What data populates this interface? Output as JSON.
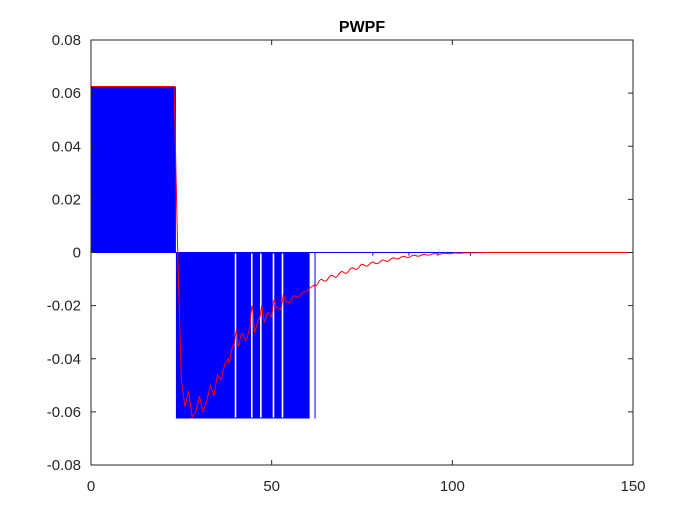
{
  "chart_data": {
    "type": "line",
    "title": "PWPF",
    "xlabel": "",
    "ylabel": "",
    "xlim": [
      0,
      150
    ],
    "ylim": [
      -0.08,
      0.08
    ],
    "x_ticks": [
      0,
      50,
      100,
      150
    ],
    "x_tick_labels": [
      "0",
      "50",
      "100",
      "150"
    ],
    "y_ticks": [
      -0.08,
      -0.06,
      -0.04,
      -0.02,
      0,
      0.02,
      0.04,
      0.06,
      0.08
    ],
    "y_tick_labels": [
      "-0.08",
      "-0.06",
      "-0.04",
      "-0.02",
      "0",
      "0.02",
      "0.04",
      "0.06",
      "0.08"
    ],
    "grid": false,
    "legend": "none",
    "series": [
      {
        "color": "#0000ff",
        "style": "pulse-width pulse-frequency modulated output",
        "pulse_amplitude": 0.0625,
        "segments": [
          {
            "x_start": 0,
            "x_end": 23.5,
            "level": 0.0625,
            "fill": "dense pulses"
          },
          {
            "x_start": 23.5,
            "x_end": 60.5,
            "level": -0.0625,
            "fill": "dense pulses"
          },
          {
            "x_start": 60.5,
            "x_end": 150,
            "level": 0,
            "fill": "sparse pulses"
          }
        ],
        "gaps_in_negative_block_x": [
          40,
          44.5,
          47,
          50.5,
          53
        ],
        "isolated_negative_pulses_x": [
          62
        ],
        "small_tail_pulses_x": [
          78,
          88,
          96,
          105
        ]
      },
      {
        "color": "#ff0000",
        "style": "control signal",
        "x": [
          0,
          23,
          24,
          25,
          26,
          27,
          28,
          29,
          30,
          31,
          32,
          33,
          34,
          35,
          36,
          37,
          38,
          40,
          42,
          44,
          46,
          48,
          50,
          52,
          54,
          56,
          58,
          60,
          62,
          65,
          70,
          75,
          80,
          85,
          90,
          95,
          100,
          105,
          110,
          150
        ],
        "y": [
          0.0625,
          0.0625,
          0.0,
          -0.048,
          -0.058,
          -0.052,
          -0.062,
          -0.06,
          -0.054,
          -0.06,
          -0.056,
          -0.05,
          -0.054,
          -0.046,
          -0.048,
          -0.042,
          -0.04,
          -0.036,
          -0.032,
          -0.03,
          -0.027,
          -0.025,
          -0.023,
          -0.021,
          -0.019,
          -0.017,
          -0.016,
          -0.014,
          -0.012,
          -0.01,
          -0.0075,
          -0.005,
          -0.0035,
          -0.002,
          -0.0012,
          -0.0006,
          -0.0003,
          -0.0001,
          0,
          0
        ]
      }
    ]
  }
}
